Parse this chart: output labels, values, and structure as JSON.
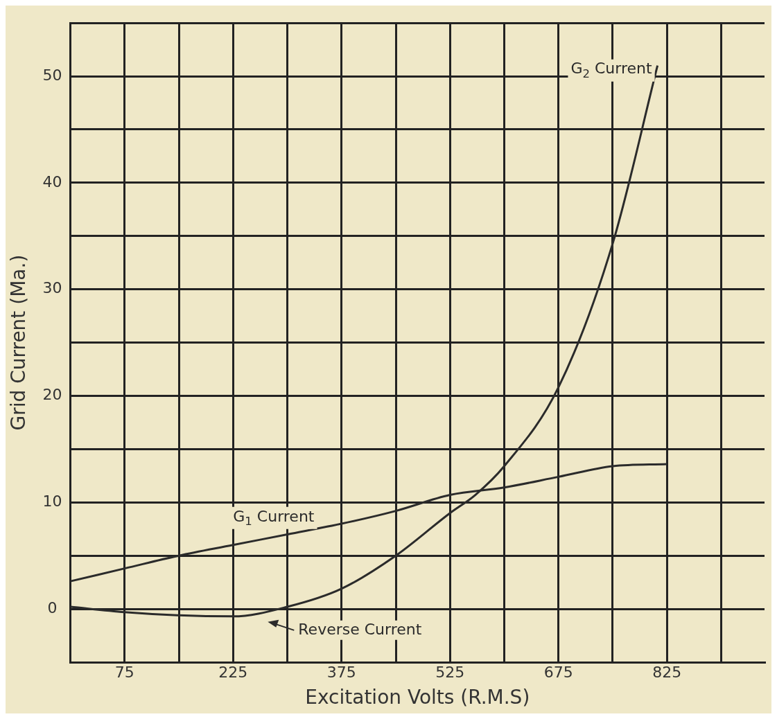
{
  "chart_data": {
    "type": "line",
    "xlabel": "Excitation Volts (R.M.S)",
    "ylabel": "Grid Current (Ma.)",
    "series": [
      {
        "name": "G$_{2}$ Current",
        "color": "#2b2b2b",
        "x": [
          0,
          75,
          150,
          225,
          300,
          375,
          450,
          525,
          560,
          600,
          675,
          750,
          812
        ],
        "values": [
          0.2,
          -0.3,
          -0.6,
          -0.7,
          0.2,
          1.9,
          5,
          9,
          10.7,
          13.4,
          20.8,
          34.3,
          51
        ]
      },
      {
        "name": "G$_{1}$ Current",
        "color": "#2b2b2b",
        "x": [
          0,
          75,
          150,
          225,
          300,
          375,
          450,
          525,
          600,
          675,
          750,
          825
        ],
        "values": [
          2.6,
          3.8,
          5,
          6,
          7,
          8,
          9.2,
          10.7,
          11.4,
          12.4,
          13.4,
          13.6
        ]
      }
    ],
    "annotations": [
      "Reverse Current"
    ],
    "xlim": [
      0,
      960
    ],
    "xticks": [
      {
        "value": 0,
        "label": null
      },
      75,
      {
        "value": 150,
        "label": null
      },
      225,
      {
        "value": 300,
        "label": null
      },
      375,
      {
        "value": 450,
        "label": null
      },
      525,
      {
        "value": 600,
        "label": null
      },
      675,
      {
        "value": 750,
        "label": null
      },
      825,
      {
        "value": 900,
        "label": null
      }
    ],
    "ylim": [
      -5,
      55
    ],
    "yticks": [
      {
        "value": -5,
        "label": null
      },
      0,
      {
        "value": 5,
        "label": null
      },
      10,
      {
        "value": 15,
        "label": null
      },
      20,
      {
        "value": 25,
        "label": null
      },
      30,
      {
        "value": 35,
        "label": null
      },
      40,
      {
        "value": 45,
        "label": null
      },
      50,
      {
        "value": 55,
        "label": null
      }
    ],
    "grid": true,
    "marker": "none",
    "line_style": "solid"
  }
}
